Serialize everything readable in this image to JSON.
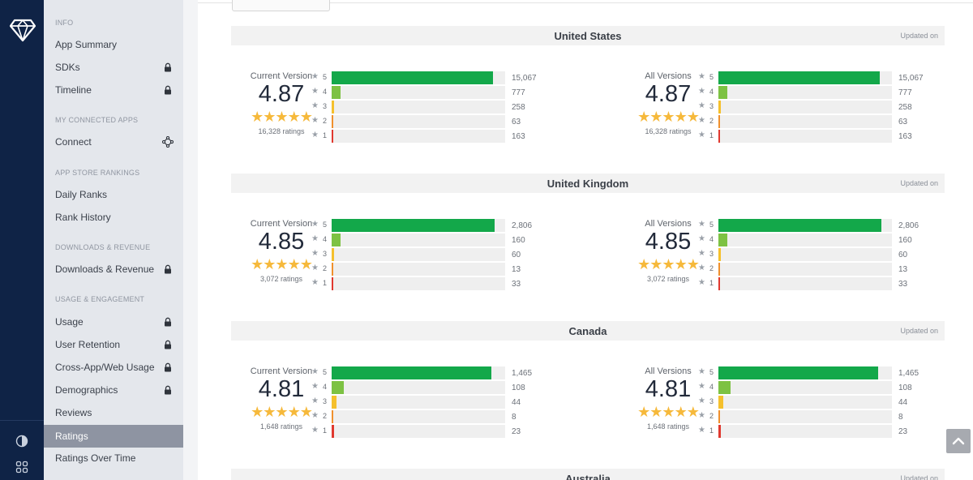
{
  "sidebar": {
    "sections": {
      "info": "INFO",
      "connected": "MY CONNECTED APPS",
      "rankings": "APP STORE RANKINGS",
      "downloads": "DOWNLOADS & REVENUE",
      "usage": "USAGE & ENGAGEMENT"
    },
    "items": {
      "app_summary": "App Summary",
      "sdks": "SDKs",
      "timeline": "Timeline",
      "connect": "Connect",
      "daily_ranks": "Daily Ranks",
      "rank_history": "Rank History",
      "downloads_revenue": "Downloads & Revenue",
      "usage": "Usage",
      "user_retention": "User Retention",
      "cross_app": "Cross-App/Web Usage",
      "demographics": "Demographics",
      "reviews": "Reviews",
      "ratings": "Ratings",
      "ratings_over_time": "Ratings Over Time"
    },
    "active": "ratings"
  },
  "colors": {
    "rail": "#0f2346",
    "star5": "#13a84a",
    "star4": "#7dc243",
    "star3": "#f5c02c",
    "star2": "#f0902d",
    "star1": "#e0392f",
    "stars": "#f6b93b"
  },
  "updated_label": "Updated on",
  "star_glyphs": "★★★★★",
  "countries": [
    {
      "name": "United States",
      "current": {
        "label": "Current Version",
        "score": "4.87",
        "ratings": "16,328 ratings",
        "dist": [
          {
            "star": "5",
            "count": "15,067",
            "pct": 0.93
          },
          {
            "star": "4",
            "count": "777",
            "pct": 0.05
          },
          {
            "star": "3",
            "count": "258",
            "pct": 0.012
          },
          {
            "star": "2",
            "count": "63",
            "pct": 0.006
          },
          {
            "star": "1",
            "count": "163",
            "pct": 0.01
          }
        ]
      },
      "all": {
        "label": "All Versions",
        "score": "4.87",
        "ratings": "16,328 ratings",
        "dist": [
          {
            "star": "5",
            "count": "15,067",
            "pct": 0.93
          },
          {
            "star": "4",
            "count": "777",
            "pct": 0.05
          },
          {
            "star": "3",
            "count": "258",
            "pct": 0.012
          },
          {
            "star": "2",
            "count": "63",
            "pct": 0.006
          },
          {
            "star": "1",
            "count": "163",
            "pct": 0.01
          }
        ]
      }
    },
    {
      "name": "United Kingdom",
      "current": {
        "label": "Current Version",
        "score": "4.85",
        "ratings": "3,072 ratings",
        "dist": [
          {
            "star": "5",
            "count": "2,806",
            "pct": 0.94
          },
          {
            "star": "4",
            "count": "160",
            "pct": 0.05
          },
          {
            "star": "3",
            "count": "60",
            "pct": 0.015
          },
          {
            "star": "2",
            "count": "13",
            "pct": 0.006
          },
          {
            "star": "1",
            "count": "33",
            "pct": 0.01
          }
        ]
      },
      "all": {
        "label": "All Versions",
        "score": "4.85",
        "ratings": "3,072 ratings",
        "dist": [
          {
            "star": "5",
            "count": "2,806",
            "pct": 0.94
          },
          {
            "star": "4",
            "count": "160",
            "pct": 0.05
          },
          {
            "star": "3",
            "count": "60",
            "pct": 0.015
          },
          {
            "star": "2",
            "count": "13",
            "pct": 0.006
          },
          {
            "star": "1",
            "count": "33",
            "pct": 0.01
          }
        ]
      }
    },
    {
      "name": "Canada",
      "current": {
        "label": "Current Version",
        "score": "4.81",
        "ratings": "1,648 ratings",
        "dist": [
          {
            "star": "5",
            "count": "1,465",
            "pct": 0.92
          },
          {
            "star": "4",
            "count": "108",
            "pct": 0.07
          },
          {
            "star": "3",
            "count": "44",
            "pct": 0.028
          },
          {
            "star": "2",
            "count": "8",
            "pct": 0.006
          },
          {
            "star": "1",
            "count": "23",
            "pct": 0.014
          }
        ]
      },
      "all": {
        "label": "All Versions",
        "score": "4.81",
        "ratings": "1,648 ratings",
        "dist": [
          {
            "star": "5",
            "count": "1,465",
            "pct": 0.92
          },
          {
            "star": "4",
            "count": "108",
            "pct": 0.07
          },
          {
            "star": "3",
            "count": "44",
            "pct": 0.028
          },
          {
            "star": "2",
            "count": "8",
            "pct": 0.006
          },
          {
            "star": "1",
            "count": "23",
            "pct": 0.014
          }
        ]
      }
    },
    {
      "name": "Australia"
    }
  ]
}
